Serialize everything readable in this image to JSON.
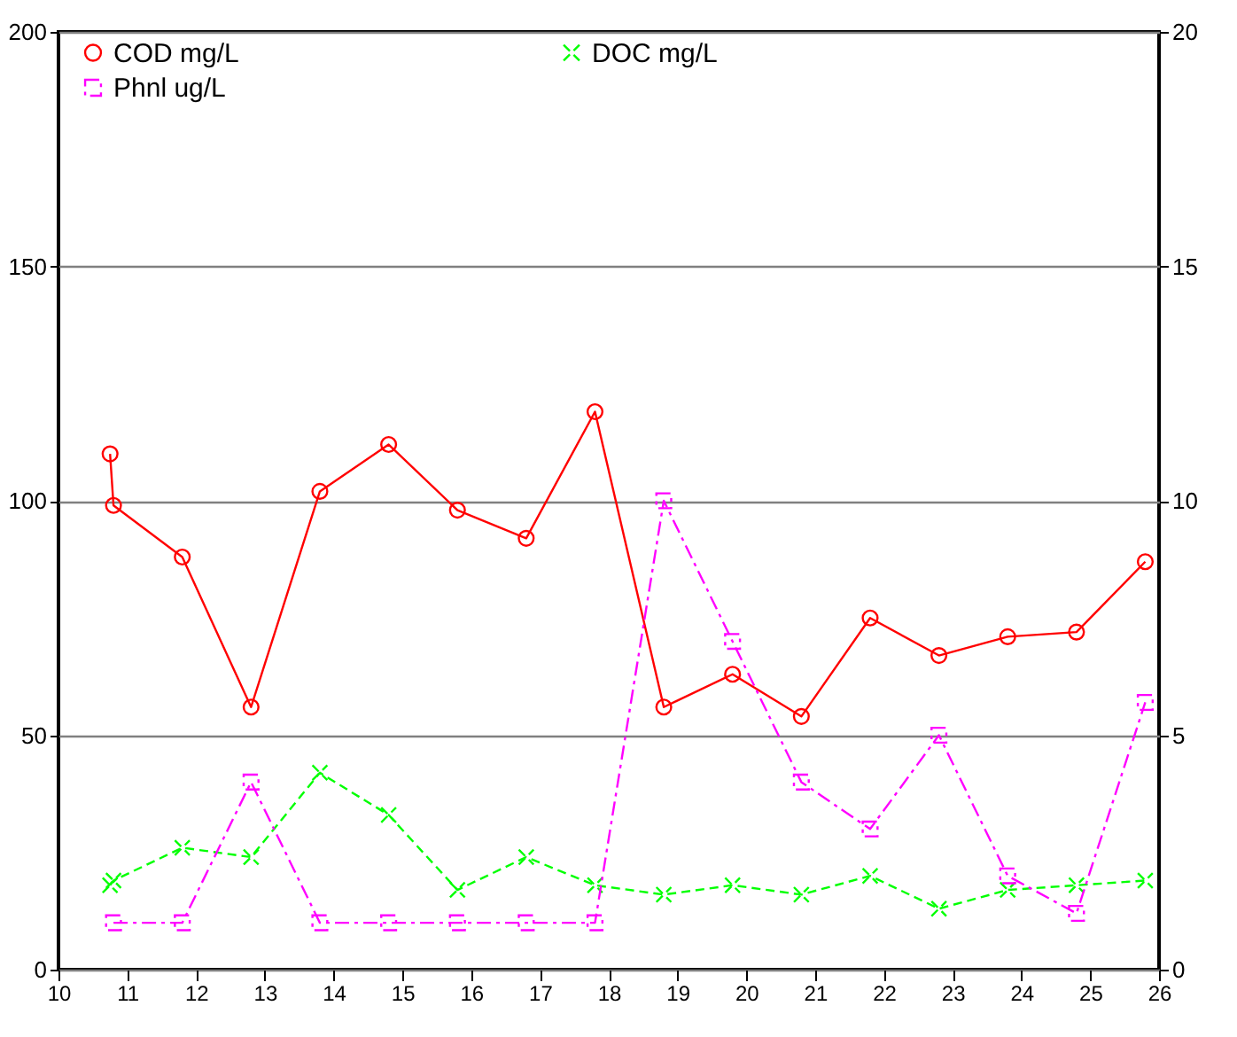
{
  "chart_data": {
    "type": "line",
    "xlim": [
      10,
      26
    ],
    "xticks": [
      10,
      11,
      12,
      13,
      14,
      15,
      16,
      17,
      18,
      19,
      20,
      21,
      22,
      23,
      24,
      25,
      26
    ],
    "ylim": [
      0,
      200
    ],
    "yticks": [
      0,
      50,
      100,
      150,
      200
    ],
    "y2lim": [
      0,
      20
    ],
    "y2ticks": [
      0,
      5,
      10,
      15,
      20
    ],
    "grid": "y",
    "legend": "top",
    "series": [
      {
        "name": "COD mg/L",
        "color": "#ff0000",
        "marker": "circle",
        "line_style": "solid",
        "x": [
          10.75,
          10.8,
          11.8,
          12.8,
          13.8,
          14.8,
          15.8,
          16.8,
          17.8,
          18.8,
          19.8,
          20.8,
          21.8,
          22.8,
          23.8,
          24.8,
          25.8
        ],
        "values": [
          110,
          99,
          88,
          56,
          102,
          112,
          98,
          92,
          119,
          56,
          63,
          54,
          75,
          67,
          71,
          72,
          87
        ]
      },
      {
        "name": "DOC mg/L",
        "color": "#00ff00",
        "marker": "cross",
        "line_style": "dashed",
        "x": [
          10.75,
          10.8,
          11.8,
          12.8,
          13.8,
          14.8,
          15.8,
          16.8,
          17.8,
          18.8,
          19.8,
          20.8,
          21.8,
          22.8,
          23.8,
          24.8,
          25.8
        ],
        "values": [
          18,
          19,
          26,
          24,
          42,
          33,
          17,
          24,
          18,
          16,
          18,
          16,
          20,
          13,
          17,
          18,
          19
        ]
      },
      {
        "name": "Phnl ug/L",
        "color": "#ff00ff",
        "marker": "square",
        "line_style": "dashdot",
        "axis": "y2",
        "x": [
          10.8,
          11.8,
          12.8,
          13.8,
          14.8,
          15.8,
          16.8,
          17.8,
          18.8,
          19.8,
          20.8,
          21.8,
          22.8,
          23.8,
          24.8,
          25.8
        ],
        "values": [
          1,
          1,
          4,
          1,
          1,
          1,
          1,
          1,
          10,
          7,
          4,
          3,
          5,
          2,
          1.2,
          5.7
        ]
      }
    ]
  }
}
